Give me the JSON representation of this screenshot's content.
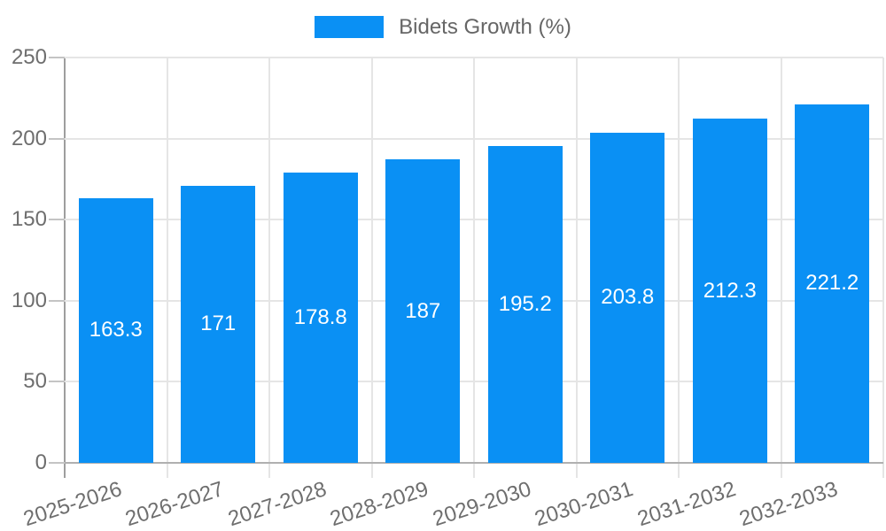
{
  "chart_data": {
    "type": "bar",
    "title": "",
    "series_name": "Bidets Growth (%)",
    "categories": [
      "2025-2026",
      "2026-2027",
      "2027-2028",
      "2028-2029",
      "2029-2030",
      "2030-2031",
      "2031-2032",
      "2032-2033"
    ],
    "values": [
      163.3,
      171,
      178.8,
      187,
      195.2,
      203.8,
      212.3,
      221.2
    ],
    "xlabel": "",
    "ylabel": "",
    "ylim": [
      0,
      250
    ],
    "yticks": [
      0,
      50,
      100,
      150,
      200,
      250
    ],
    "grid": true,
    "legend_position": "top-center",
    "value_label_position": "inside-center",
    "x_tick_rotation_deg": -18
  },
  "colors": {
    "bar": "#0a90f4",
    "grid_line": "#e5e5e5",
    "axis_line_y": "#9e9e9e",
    "axis_line_x": "#b0b0b0",
    "axis_tick": "#c4c4c4",
    "axis_label": "#6e6e6e",
    "legend_label": "#666666",
    "value_label": "#ffffff",
    "background": "#ffffff"
  }
}
